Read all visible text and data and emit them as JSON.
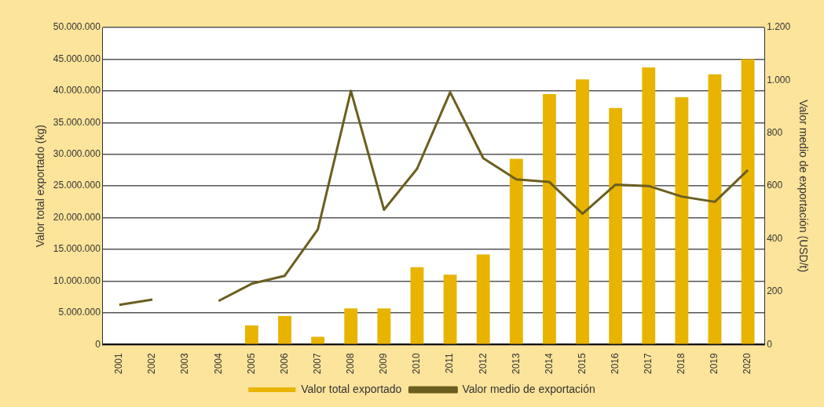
{
  "chart_data": {
    "type": "bar",
    "ylabel": "Valor total exportado (kg)",
    "y2label": "Valor medio de exportación (USD/t)",
    "categories": [
      "2001",
      "2002",
      "2003",
      "2004",
      "2005",
      "2006",
      "2007",
      "2008",
      "2009",
      "2010",
      "2011",
      "2012",
      "2013",
      "2014",
      "2015",
      "2016",
      "2017",
      "2018",
      "2019",
      "2020"
    ],
    "series": [
      {
        "name": "Valor total exportado",
        "color": "#e8b400",
        "values": [
          0,
          100000,
          0,
          100000,
          3000000,
          4500000,
          1200000,
          5700000,
          5700000,
          12200000,
          11000000,
          14200000,
          29300000,
          39500000,
          41800000,
          37300000,
          43700000,
          39000000,
          42600000,
          45000000
        ]
      },
      {
        "name": "Valor medio de exportación",
        "type": "line",
        "axis": "y2",
        "color": "#6b5e1e",
        "values": [
          150,
          170,
          null,
          165,
          230,
          260,
          435,
          960,
          510,
          665,
          955,
          705,
          625,
          615,
          495,
          605,
          600,
          560,
          540,
          660
        ]
      }
    ],
    "ylim": [
      0,
      50000000
    ],
    "yticks": [
      0,
      {
        "value": 5000000,
        "label": "5.000.000"
      },
      {
        "value": 10000000,
        "label": "10.000.000"
      },
      {
        "value": 15000000,
        "label": "15.000.000"
      },
      {
        "value": 20000000,
        "label": "20.000.000"
      },
      {
        "value": 25000000,
        "label": "25.000.000"
      },
      {
        "value": 30000000,
        "label": "30.000.000"
      },
      {
        "value": 35000000,
        "label": "35.000.000"
      },
      {
        "value": 40000000,
        "label": "40.000.000"
      },
      {
        "value": 45000000,
        "label": "45.000.000"
      },
      {
        "value": 50000000,
        "label": "50.000.000"
      }
    ],
    "y2lim": [
      0,
      1200
    ],
    "y2ticks": [
      0,
      200,
      400,
      600,
      800,
      {
        "value": 1000,
        "label": "1.000"
      },
      {
        "value": 1200,
        "label": "1.200"
      }
    ],
    "grid": "y",
    "legend": "bottom",
    "marker": "none"
  }
}
